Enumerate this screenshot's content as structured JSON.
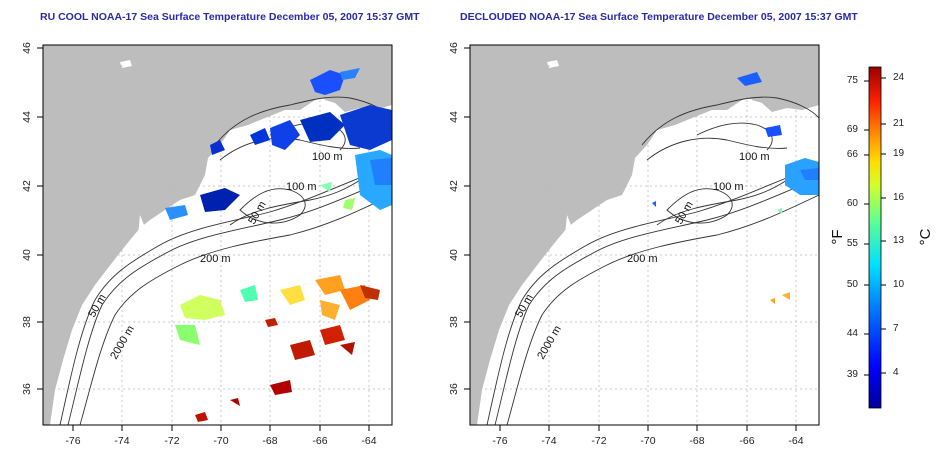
{
  "panels": [
    {
      "title": "RU COOL NOAA-17 Sea Surface Temperature December 05, 2007 15:37 GMT",
      "contour_labels": [
        "100 m",
        "100 m",
        "50 m",
        "200 m",
        "50 m",
        "2000 m"
      ]
    },
    {
      "title": "DECLOUDED NOAA-17 Sea Surface Temperature December 05, 2007 15:37 GMT",
      "contour_labels": [
        "100 m",
        "100 m",
        "50 m",
        "200 m",
        "50 m",
        "2000 m"
      ]
    }
  ],
  "axes": {
    "x_ticks": [
      "-76",
      "-74",
      "-72",
      "-70",
      "-68",
      "-66",
      "-64"
    ],
    "y_ticks": [
      "36",
      "38",
      "40",
      "42",
      "44",
      "46"
    ],
    "lon_range": [
      -77,
      -63
    ],
    "lat_range": [
      35,
      46
    ]
  },
  "colorbar": {
    "fahrenheit_ticks": [
      "75",
      "69",
      "66",
      "60",
      "55",
      "50",
      "44",
      "39"
    ],
    "celsius_ticks": [
      "24",
      "21",
      "19",
      "16",
      "13",
      "10",
      "7",
      "4"
    ],
    "fahrenheit_unit": "°F",
    "celsius_unit": "°C",
    "colors": [
      "#0000a0",
      "#0040ff",
      "#00c0ff",
      "#40ffc0",
      "#c0ff40",
      "#ffc000",
      "#ff4000",
      "#a00000"
    ]
  }
}
